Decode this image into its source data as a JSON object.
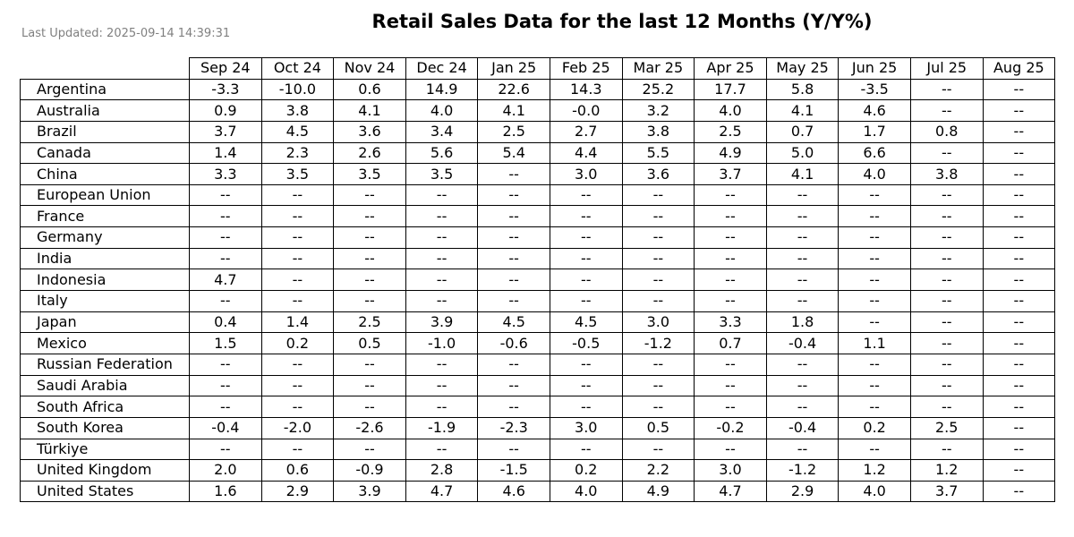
{
  "header": {
    "title": "Retail Sales Data for the last 12 Months (Y/Y%)",
    "updated": "Last Updated: 2025-09-14 14:39:31"
  },
  "chart_data": {
    "type": "table",
    "title": "Retail Sales Data for the last 12 Months (Y/Y%)",
    "columns": [
      "Sep 24",
      "Oct 24",
      "Nov 24",
      "Dec 24",
      "Jan 25",
      "Feb 25",
      "Mar 25",
      "Apr 25",
      "May 25",
      "Jun 25",
      "Jul 25",
      "Aug 25"
    ],
    "rows": [
      {
        "country": "Argentina",
        "values": [
          "-3.3",
          "-10.0",
          "0.6",
          "14.9",
          "22.6",
          "14.3",
          "25.2",
          "17.7",
          "5.8",
          "-3.5",
          "--",
          "--"
        ]
      },
      {
        "country": "Australia",
        "values": [
          "0.9",
          "3.8",
          "4.1",
          "4.0",
          "4.1",
          "-0.0",
          "3.2",
          "4.0",
          "4.1",
          "4.6",
          "--",
          "--"
        ]
      },
      {
        "country": "Brazil",
        "values": [
          "3.7",
          "4.5",
          "3.6",
          "3.4",
          "2.5",
          "2.7",
          "3.8",
          "2.5",
          "0.7",
          "1.7",
          "0.8",
          "--"
        ]
      },
      {
        "country": "Canada",
        "values": [
          "1.4",
          "2.3",
          "2.6",
          "5.6",
          "5.4",
          "4.4",
          "5.5",
          "4.9",
          "5.0",
          "6.6",
          "--",
          "--"
        ]
      },
      {
        "country": "China",
        "values": [
          "3.3",
          "3.5",
          "3.5",
          "3.5",
          "--",
          "3.0",
          "3.6",
          "3.7",
          "4.1",
          "4.0",
          "3.8",
          "--"
        ]
      },
      {
        "country": "European Union",
        "values": [
          "--",
          "--",
          "--",
          "--",
          "--",
          "--",
          "--",
          "--",
          "--",
          "--",
          "--",
          "--"
        ]
      },
      {
        "country": "France",
        "values": [
          "--",
          "--",
          "--",
          "--",
          "--",
          "--",
          "--",
          "--",
          "--",
          "--",
          "--",
          "--"
        ]
      },
      {
        "country": "Germany",
        "values": [
          "--",
          "--",
          "--",
          "--",
          "--",
          "--",
          "--",
          "--",
          "--",
          "--",
          "--",
          "--"
        ]
      },
      {
        "country": "India",
        "values": [
          "--",
          "--",
          "--",
          "--",
          "--",
          "--",
          "--",
          "--",
          "--",
          "--",
          "--",
          "--"
        ]
      },
      {
        "country": "Indonesia",
        "values": [
          "4.7",
          "--",
          "--",
          "--",
          "--",
          "--",
          "--",
          "--",
          "--",
          "--",
          "--",
          "--"
        ]
      },
      {
        "country": "Italy",
        "values": [
          "--",
          "--",
          "--",
          "--",
          "--",
          "--",
          "--",
          "--",
          "--",
          "--",
          "--",
          "--"
        ]
      },
      {
        "country": "Japan",
        "values": [
          "0.4",
          "1.4",
          "2.5",
          "3.9",
          "4.5",
          "4.5",
          "3.0",
          "3.3",
          "1.8",
          "--",
          "--",
          "--"
        ]
      },
      {
        "country": "Mexico",
        "values": [
          "1.5",
          "0.2",
          "0.5",
          "-1.0",
          "-0.6",
          "-0.5",
          "-1.2",
          "0.7",
          "-0.4",
          "1.1",
          "--",
          "--"
        ]
      },
      {
        "country": "Russian Federation",
        "values": [
          "--",
          "--",
          "--",
          "--",
          "--",
          "--",
          "--",
          "--",
          "--",
          "--",
          "--",
          "--"
        ]
      },
      {
        "country": "Saudi Arabia",
        "values": [
          "--",
          "--",
          "--",
          "--",
          "--",
          "--",
          "--",
          "--",
          "--",
          "--",
          "--",
          "--"
        ]
      },
      {
        "country": "South Africa",
        "values": [
          "--",
          "--",
          "--",
          "--",
          "--",
          "--",
          "--",
          "--",
          "--",
          "--",
          "--",
          "--"
        ]
      },
      {
        "country": "South Korea",
        "values": [
          "-0.4",
          "-2.0",
          "-2.6",
          "-1.9",
          "-2.3",
          "3.0",
          "0.5",
          "-0.2",
          "-0.4",
          "0.2",
          "2.5",
          "--"
        ]
      },
      {
        "country": "Türkiye",
        "values": [
          "--",
          "--",
          "--",
          "--",
          "--",
          "--",
          "--",
          "--",
          "--",
          "--",
          "--",
          "--"
        ]
      },
      {
        "country": "United Kingdom",
        "values": [
          "2.0",
          "0.6",
          "-0.9",
          "2.8",
          "-1.5",
          "0.2",
          "2.2",
          "3.0",
          "-1.2",
          "1.2",
          "1.2",
          "--"
        ]
      },
      {
        "country": "United States",
        "values": [
          "1.6",
          "2.9",
          "3.9",
          "4.7",
          "4.6",
          "4.0",
          "4.9",
          "4.7",
          "2.9",
          "4.0",
          "3.7",
          "--"
        ]
      }
    ]
  }
}
